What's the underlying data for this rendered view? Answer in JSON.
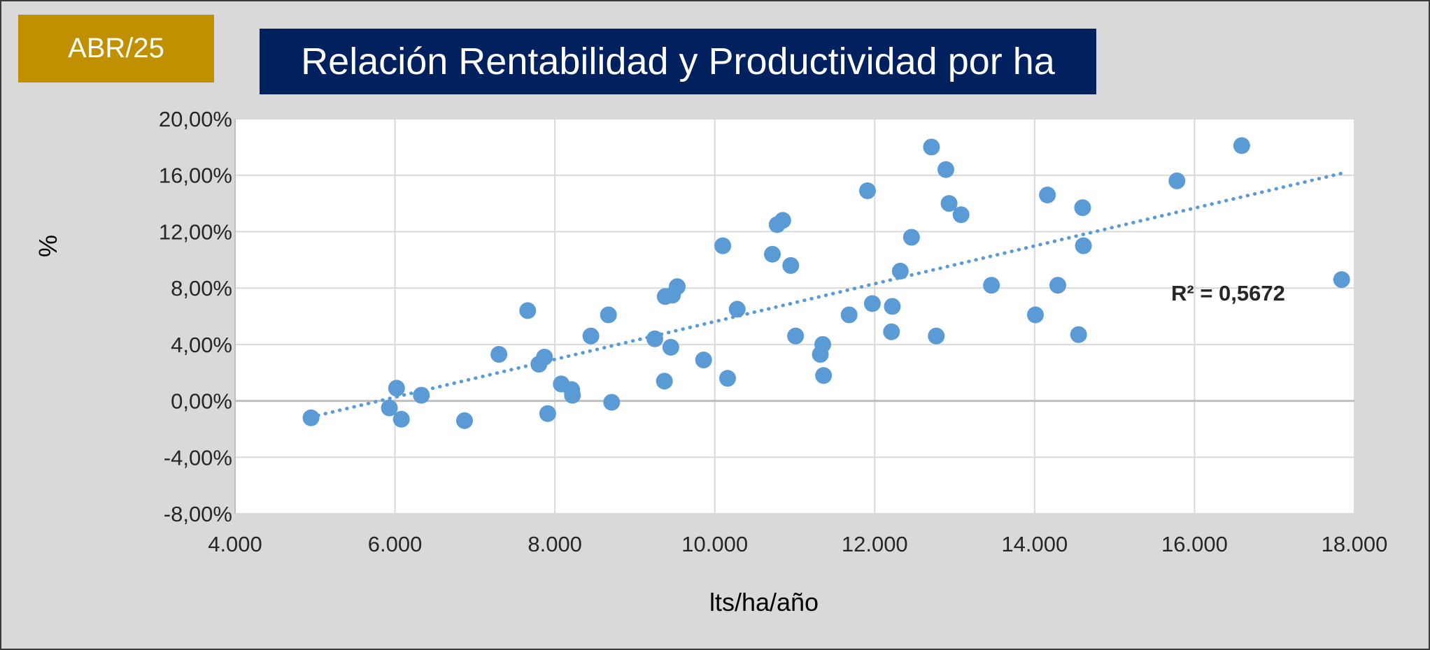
{
  "badge": {
    "text": "ABR/25",
    "color": "#c09000"
  },
  "chart_data": {
    "type": "scatter",
    "title": "Relación Rentabilidad y Productividad por ha",
    "xlabel": "lts/ha/año",
    "ylabel": "%",
    "xlim": [
      4000,
      18000
    ],
    "ylim": [
      -8,
      20
    ],
    "x_ticks": [
      4000,
      6000,
      8000,
      10000,
      12000,
      14000,
      16000,
      18000
    ],
    "x_tick_labels": [
      "4.000",
      "6.000",
      "8.000",
      "10.000",
      "12.000",
      "14.000",
      "16.000",
      "18.000"
    ],
    "y_ticks": [
      -8,
      -4,
      0,
      4,
      8,
      12,
      16,
      20
    ],
    "y_tick_labels": [
      "-8,00%",
      "-4,00%",
      "0,00%",
      "4,00%",
      "8,00%",
      "12,00%",
      "16,00%",
      "20,00%"
    ],
    "grid": true,
    "legend": "none",
    "marker_color": "#5b9bd5",
    "title_bg_color": "#00215e",
    "trendline": {
      "type": "linear",
      "style": "dotted",
      "r_squared_label": "R² = 0,5672",
      "x_range": [
        4950,
        17850
      ]
    },
    "points": [
      {
        "x": 4950,
        "y": -1.2
      },
      {
        "x": 5930,
        "y": -0.5
      },
      {
        "x": 6020,
        "y": 0.9
      },
      {
        "x": 6080,
        "y": -1.3
      },
      {
        "x": 6330,
        "y": 0.4
      },
      {
        "x": 6870,
        "y": -1.4
      },
      {
        "x": 7300,
        "y": 3.3
      },
      {
        "x": 7660,
        "y": 6.4
      },
      {
        "x": 7800,
        "y": 2.6
      },
      {
        "x": 7870,
        "y": 3.1
      },
      {
        "x": 7910,
        "y": -0.9
      },
      {
        "x": 8080,
        "y": 1.2
      },
      {
        "x": 8210,
        "y": 0.8
      },
      {
        "x": 8220,
        "y": 0.4
      },
      {
        "x": 8450,
        "y": 4.6
      },
      {
        "x": 8670,
        "y": 6.1
      },
      {
        "x": 8710,
        "y": -0.1
      },
      {
        "x": 9250,
        "y": 4.4
      },
      {
        "x": 9370,
        "y": 1.4
      },
      {
        "x": 9380,
        "y": 7.4
      },
      {
        "x": 9450,
        "y": 3.8
      },
      {
        "x": 9470,
        "y": 7.5
      },
      {
        "x": 9530,
        "y": 8.1
      },
      {
        "x": 9860,
        "y": 2.9
      },
      {
        "x": 10100,
        "y": 11.0
      },
      {
        "x": 10160,
        "y": 1.6
      },
      {
        "x": 10280,
        "y": 6.5
      },
      {
        "x": 10720,
        "y": 10.4
      },
      {
        "x": 10780,
        "y": 12.5
      },
      {
        "x": 10850,
        "y": 12.8
      },
      {
        "x": 10950,
        "y": 9.6
      },
      {
        "x": 11010,
        "y": 4.6
      },
      {
        "x": 11320,
        "y": 3.3
      },
      {
        "x": 11350,
        "y": 4.0
      },
      {
        "x": 11360,
        "y": 1.8
      },
      {
        "x": 11680,
        "y": 6.1
      },
      {
        "x": 11910,
        "y": 14.9
      },
      {
        "x": 11970,
        "y": 6.9
      },
      {
        "x": 12210,
        "y": 4.9
      },
      {
        "x": 12220,
        "y": 6.7
      },
      {
        "x": 12320,
        "y": 9.2
      },
      {
        "x": 12460,
        "y": 11.6
      },
      {
        "x": 12710,
        "y": 18.0
      },
      {
        "x": 12770,
        "y": 4.6
      },
      {
        "x": 12890,
        "y": 16.4
      },
      {
        "x": 12930,
        "y": 14.0
      },
      {
        "x": 13080,
        "y": 13.2
      },
      {
        "x": 13460,
        "y": 8.2
      },
      {
        "x": 14010,
        "y": 6.1
      },
      {
        "x": 14160,
        "y": 14.6
      },
      {
        "x": 14290,
        "y": 8.2
      },
      {
        "x": 14550,
        "y": 4.7
      },
      {
        "x": 14600,
        "y": 13.7
      },
      {
        "x": 14610,
        "y": 11.0
      },
      {
        "x": 15780,
        "y": 15.6
      },
      {
        "x": 16590,
        "y": 18.1
      },
      {
        "x": 17840,
        "y": 8.6
      }
    ]
  }
}
